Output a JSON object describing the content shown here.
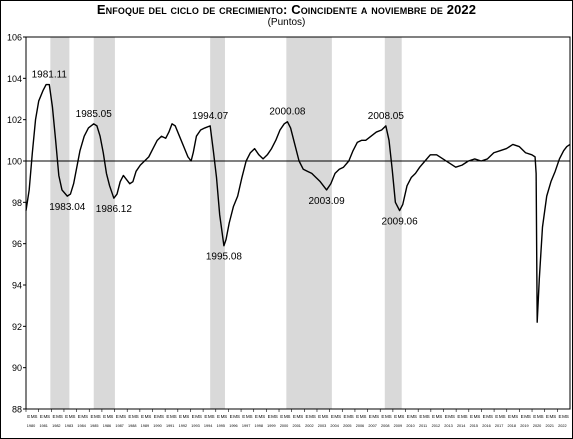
{
  "chart_data": {
    "type": "line",
    "title": "Enfoque del ciclo de crecimiento: Coincidente a noviembre de 2022",
    "subtitle": "(Puntos)",
    "xlabel": "",
    "ylabel": "",
    "ylim": [
      88,
      106
    ],
    "yticks": [
      "88",
      "90",
      "92",
      "94",
      "96",
      "98",
      "100",
      "102",
      "104",
      "106"
    ],
    "reference_line": 100,
    "grid": false,
    "legend": "none",
    "x_start": "1980-01",
    "x_end": "2022-11",
    "year_tick_labels": [
      "1980",
      "1981",
      "1982",
      "1983",
      "1984",
      "1985",
      "1986",
      "1987",
      "1988",
      "1989",
      "1990",
      "1991",
      "1992",
      "1993",
      "1994",
      "1995",
      "1996",
      "1997",
      "1998",
      "1999",
      "2000",
      "2001",
      "2002",
      "2003",
      "2004",
      "2005",
      "2006",
      "2007",
      "2008",
      "2009",
      "2010",
      "2011",
      "2012",
      "2013",
      "2014",
      "2015",
      "2016",
      "2017",
      "2018",
      "2019",
      "2020",
      "2021",
      "2022"
    ],
    "month_tick_letters": "EMS",
    "recession_bands": [
      {
        "start": "1981-12",
        "end": "1983-06"
      },
      {
        "start": "1985-05",
        "end": "1987-01"
      },
      {
        "start": "1994-07",
        "end": "1995-09"
      },
      {
        "start": "2000-07",
        "end": "2004-02"
      },
      {
        "start": "2008-04",
        "end": "2009-08"
      }
    ],
    "annotations": [
      {
        "label": "1981.11",
        "date": "1981-11",
        "value": 103.7,
        "position": "above"
      },
      {
        "label": "1983.04",
        "date": "1983-04",
        "value": 98.3,
        "position": "below"
      },
      {
        "label": "1985.05",
        "date": "1985-05",
        "value": 101.8,
        "position": "above"
      },
      {
        "label": "1986.12",
        "date": "1986-12",
        "value": 98.2,
        "position": "below"
      },
      {
        "label": "1994.07",
        "date": "1994-07",
        "value": 101.7,
        "position": "above"
      },
      {
        "label": "1995.08",
        "date": "1995-08",
        "value": 95.9,
        "position": "below"
      },
      {
        "label": "2000.08",
        "date": "2000-08",
        "value": 101.9,
        "position": "above"
      },
      {
        "label": "2003.09",
        "date": "2003-09",
        "value": 98.6,
        "position": "below"
      },
      {
        "label": "2008.05",
        "date": "2008-05",
        "value": 101.7,
        "position": "above"
      },
      {
        "label": "2009.06",
        "date": "2009-06",
        "value": 97.6,
        "position": "below"
      }
    ],
    "series": [
      {
        "line_color": "#000000",
        "points": [
          [
            "1980-01",
            97.6
          ],
          [
            "1980-04",
            98.6
          ],
          [
            "1980-07",
            100.4
          ],
          [
            "1980-10",
            102.0
          ],
          [
            "1981-01",
            102.9
          ],
          [
            "1981-05",
            103.4
          ],
          [
            "1981-08",
            103.7
          ],
          [
            "1981-11",
            103.7
          ],
          [
            "1982-02",
            102.6
          ],
          [
            "1982-05",
            101.0
          ],
          [
            "1982-08",
            99.3
          ],
          [
            "1982-11",
            98.6
          ],
          [
            "1983-04",
            98.3
          ],
          [
            "1983-07",
            98.4
          ],
          [
            "1983-10",
            98.9
          ],
          [
            "1984-01",
            99.7
          ],
          [
            "1984-04",
            100.5
          ],
          [
            "1984-08",
            101.2
          ],
          [
            "1984-12",
            101.6
          ],
          [
            "1985-05",
            101.8
          ],
          [
            "1985-08",
            101.7
          ],
          [
            "1985-11",
            101.2
          ],
          [
            "1986-02",
            100.4
          ],
          [
            "1986-05",
            99.4
          ],
          [
            "1986-08",
            98.8
          ],
          [
            "1986-12",
            98.2
          ],
          [
            "1987-03",
            98.4
          ],
          [
            "1987-06",
            99.0
          ],
          [
            "1987-09",
            99.3
          ],
          [
            "1987-12",
            99.1
          ],
          [
            "1988-03",
            98.9
          ],
          [
            "1988-06",
            99.0
          ],
          [
            "1988-09",
            99.5
          ],
          [
            "1989-01",
            99.8
          ],
          [
            "1989-05",
            100.0
          ],
          [
            "1989-09",
            100.2
          ],
          [
            "1990-01",
            100.6
          ],
          [
            "1990-05",
            101.0
          ],
          [
            "1990-09",
            101.2
          ],
          [
            "1991-01",
            101.1
          ],
          [
            "1991-04",
            101.4
          ],
          [
            "1991-07",
            101.8
          ],
          [
            "1991-10",
            101.7
          ],
          [
            "1992-02",
            101.2
          ],
          [
            "1992-06",
            100.7
          ],
          [
            "1992-10",
            100.2
          ],
          [
            "1993-01",
            100.0
          ],
          [
            "1993-03",
            100.4
          ],
          [
            "1993-06",
            101.2
          ],
          [
            "1993-10",
            101.5
          ],
          [
            "1994-02",
            101.6
          ],
          [
            "1994-07",
            101.7
          ],
          [
            "1994-10",
            100.5
          ],
          [
            "1995-01",
            99.2
          ],
          [
            "1995-04",
            97.4
          ],
          [
            "1995-08",
            95.9
          ],
          [
            "1995-10",
            96.2
          ],
          [
            "1996-01",
            97.0
          ],
          [
            "1996-05",
            97.8
          ],
          [
            "1996-09",
            98.3
          ],
          [
            "1997-01",
            99.2
          ],
          [
            "1997-05",
            100.0
          ],
          [
            "1997-09",
            100.4
          ],
          [
            "1998-01",
            100.6
          ],
          [
            "1998-05",
            100.3
          ],
          [
            "1998-09",
            100.1
          ],
          [
            "1999-01",
            100.3
          ],
          [
            "1999-05",
            100.6
          ],
          [
            "1999-09",
            101.0
          ],
          [
            "2000-01",
            101.5
          ],
          [
            "2000-05",
            101.8
          ],
          [
            "2000-08",
            101.9
          ],
          [
            "2000-11",
            101.6
          ],
          [
            "2001-03",
            100.8
          ],
          [
            "2001-07",
            100.0
          ],
          [
            "2001-11",
            99.6
          ],
          [
            "2002-03",
            99.5
          ],
          [
            "2002-07",
            99.4
          ],
          [
            "2002-11",
            99.2
          ],
          [
            "2003-03",
            99.0
          ],
          [
            "2003-09",
            98.6
          ],
          [
            "2004-01",
            98.9
          ],
          [
            "2004-05",
            99.4
          ],
          [
            "2004-09",
            99.6
          ],
          [
            "2005-01",
            99.7
          ],
          [
            "2005-06",
            100.0
          ],
          [
            "2005-10",
            100.5
          ],
          [
            "2006-02",
            100.9
          ],
          [
            "2006-06",
            101.0
          ],
          [
            "2006-10",
            101.0
          ],
          [
            "2007-03",
            101.2
          ],
          [
            "2007-08",
            101.4
          ],
          [
            "2008-01",
            101.5
          ],
          [
            "2008-05",
            101.7
          ],
          [
            "2008-08",
            101.0
          ],
          [
            "2008-11",
            99.6
          ],
          [
            "2009-02",
            98.0
          ],
          [
            "2009-06",
            97.6
          ],
          [
            "2009-09",
            97.9
          ],
          [
            "2010-01",
            98.8
          ],
          [
            "2010-05",
            99.2
          ],
          [
            "2010-09",
            99.4
          ],
          [
            "2011-01",
            99.7
          ],
          [
            "2011-06",
            100.0
          ],
          [
            "2011-11",
            100.3
          ],
          [
            "2012-05",
            100.3
          ],
          [
            "2012-11",
            100.1
          ],
          [
            "2013-05",
            99.9
          ],
          [
            "2013-11",
            99.7
          ],
          [
            "2014-05",
            99.8
          ],
          [
            "2014-11",
            100.0
          ],
          [
            "2015-05",
            100.1
          ],
          [
            "2015-11",
            100.0
          ],
          [
            "2016-05",
            100.1
          ],
          [
            "2016-11",
            100.4
          ],
          [
            "2017-05",
            100.5
          ],
          [
            "2017-11",
            100.6
          ],
          [
            "2018-05",
            100.8
          ],
          [
            "2018-11",
            100.7
          ],
          [
            "2019-05",
            100.4
          ],
          [
            "2019-11",
            100.3
          ],
          [
            "2020-02",
            100.2
          ],
          [
            "2020-03",
            99.4
          ],
          [
            "2020-04",
            92.2
          ],
          [
            "2020-06",
            94.3
          ],
          [
            "2020-09",
            96.8
          ],
          [
            "2021-01",
            98.3
          ],
          [
            "2021-05",
            99.0
          ],
          [
            "2021-09",
            99.5
          ],
          [
            "2022-01",
            100.1
          ],
          [
            "2022-05",
            100.5
          ],
          [
            "2022-08",
            100.7
          ],
          [
            "2022-11",
            100.8
          ]
        ]
      }
    ]
  }
}
